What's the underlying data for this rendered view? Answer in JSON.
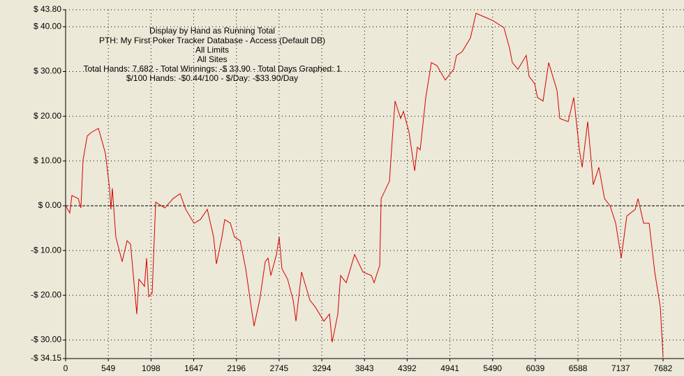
{
  "chart_data": {
    "type": "line",
    "annotations": [
      "Display by Hand as Running Total",
      "PTH: My First Poker Tracker Database - Access (Default DB)",
      "All Limits",
      "All Sites",
      "Total Hands: 7,682 - Total Winnings: -$ 33.90 - Total Days Graphed: 1",
      "$/100 Hands: -$0.44/100 - $/Day: -$33.90/Day"
    ],
    "x": [
      0,
      54,
      81,
      162,
      197,
      224,
      278,
      332,
      422,
      512,
      565,
      583,
      601,
      646,
      727,
      790,
      835,
      915,
      942,
      1014,
      1041,
      1068,
      1113,
      1158,
      1275,
      1382,
      1472,
      1544,
      1651,
      1732,
      1822,
      1903,
      1939,
      2010,
      2046,
      2118,
      2172,
      2244,
      2316,
      2387,
      2423,
      2495,
      2567,
      2603,
      2639,
      2711,
      2746,
      2782,
      2854,
      2926,
      2962,
      3034,
      3141,
      3213,
      3321,
      3393,
      3428,
      3500,
      3536,
      3608,
      3716,
      3823,
      3931,
      3967,
      4039,
      4057,
      4164,
      4200,
      4236,
      4308,
      4344,
      4416,
      4488,
      4523,
      4559,
      4631,
      4703,
      4775,
      4882,
      4990,
      5026,
      5098,
      5205,
      5277,
      5385,
      5492,
      5636,
      5708,
      5744,
      5816,
      5923,
      5959,
      6031,
      6067,
      6139,
      6211,
      6318,
      6354,
      6462,
      6534,
      6606,
      6642,
      6713,
      6785,
      6857,
      6929,
      7001,
      7073,
      7144,
      7216,
      7324,
      7360,
      7432,
      7503,
      7575,
      7647,
      7682
    ],
    "series": [
      {
        "color": "#d40000",
        "values": [
          0,
          -1.6,
          2.3,
          1.6,
          -0.5,
          10.2,
          15.6,
          16.4,
          17.3,
          11.7,
          3.9,
          -0.8,
          3.9,
          -7.0,
          -12.5,
          -7.8,
          -8.6,
          -24.2,
          -16.4,
          -18.0,
          -11.7,
          -20.3,
          -19.5,
          0.8,
          -0.5,
          1.6,
          2.7,
          -0.8,
          -3.9,
          -3.1,
          -0.8,
          -7.0,
          -13.0,
          -7.0,
          -3.1,
          -3.9,
          -7.0,
          -7.8,
          -14.1,
          -22.7,
          -26.9,
          -21.1,
          -12.5,
          -11.7,
          -15.6,
          -10.9,
          -7.0,
          -14.1,
          -16.4,
          -21.1,
          -25.8,
          -14.8,
          -21.1,
          -22.7,
          -25.8,
          -24.2,
          -30.5,
          -24.2,
          -15.6,
          -17.2,
          -10.9,
          -14.8,
          -15.6,
          -17.2,
          -13.3,
          1.6,
          5.5,
          14.8,
          23.4,
          19.5,
          21.1,
          16.4,
          7.8,
          13.1,
          12.5,
          24.2,
          32.0,
          31.3,
          28.1,
          30.5,
          33.6,
          34.4,
          37.5,
          43.0,
          42.2,
          41.4,
          39.8,
          35.2,
          32.0,
          30.5,
          33.6,
          28.9,
          27.3,
          24.2,
          23.4,
          32.0,
          25.8,
          19.5,
          18.8,
          24.2,
          12.5,
          8.6,
          18.8,
          4.7,
          8.6,
          1.6,
          0.0,
          -3.9,
          -11.7,
          -2.3,
          -0.8,
          1.6,
          -3.9,
          -3.9,
          -14.8,
          -22.7,
          -33.9
        ]
      }
    ],
    "xlim": [
      0,
      7682
    ],
    "xticks": [
      0,
      549,
      1098,
      1647,
      2196,
      2745,
      3294,
      3843,
      4392,
      4941,
      5490,
      6039,
      6588,
      7137,
      7682
    ],
    "ylim": [
      -34.15,
      43.8
    ],
    "yticks": [
      {
        "value": 43.8,
        "label": "$ 43.80"
      },
      {
        "value": 40,
        "label": "$ 40.00"
      },
      {
        "value": 30,
        "label": "$ 30.00"
      },
      {
        "value": 20,
        "label": "$ 20.00"
      },
      {
        "value": 10,
        "label": "$ 10.00"
      },
      {
        "value": 0,
        "label": "$ 0.00"
      },
      {
        "value": -10,
        "label": "-$ 10.00"
      },
      {
        "value": -20,
        "label": "-$ 20.00"
      },
      {
        "value": -30,
        "label": "-$ 30.00"
      },
      {
        "value": -34.15,
        "label": "-$ 34.15"
      }
    ],
    "grid": true
  }
}
